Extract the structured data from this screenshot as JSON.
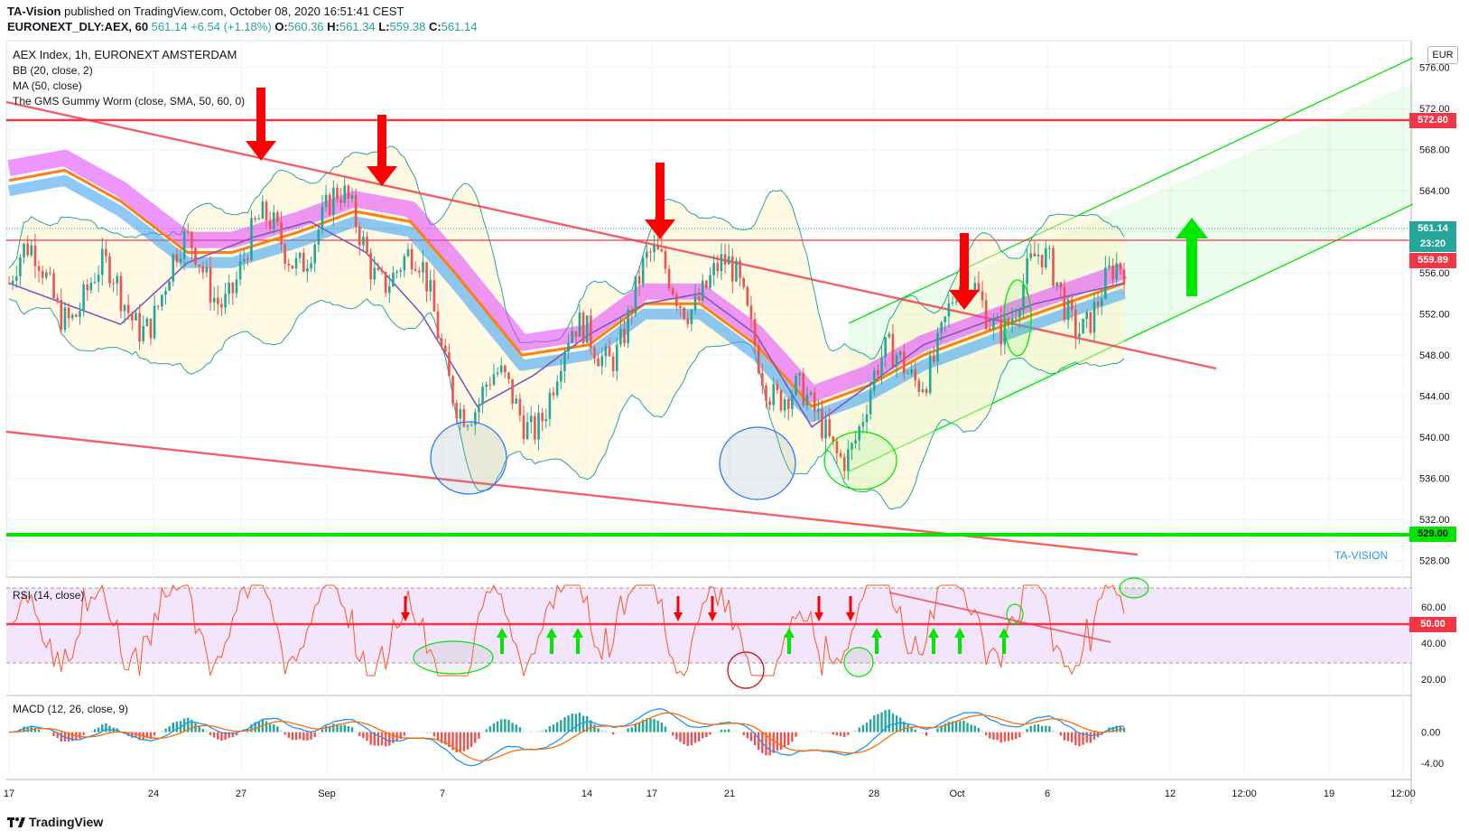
{
  "header": {
    "publisher": "TA-Vision",
    "published_text": "published on TradingView.com, October 08, 2020 16:51:41 CEST",
    "symbol": "EURONEXT_DLY:AEX, 60",
    "last": "561.14",
    "change": "+6.54 (+1.18%)",
    "o_label": "O:",
    "o": "560.36",
    "h_label": "H:",
    "h": "561.34",
    "l_label": "L:",
    "l": "559.38",
    "c_label": "C:",
    "c": "561.14"
  },
  "legend": {
    "title": "AEX Index, 1h, EURONEXT AMSTERDAM",
    "bb": "BB (20, close, 2)",
    "ma": "MA (50, close)",
    "worm": "The GMS Gummy Worm (close, SMA, 50, 60, 0)",
    "rsi": "RSI (14, close)",
    "macd": "MACD (12, 26, close, 9)"
  },
  "currency": "EUR",
  "watermark": "TA-VISION",
  "footer": "TradingView",
  "price_tags": {
    "resistance": "572.60",
    "last": "561.14",
    "countdown": "23:20",
    "level": "559.89",
    "support": "529.00",
    "rsi_mid": "50.00"
  },
  "colors": {
    "up": "#26a69a",
    "down": "#ef5350",
    "red_line": "#f23645",
    "green_line": "#00e600",
    "ma": "#7e57c2",
    "worm_line": "#ff7f0e",
    "worm_pink": "#e040fb",
    "worm_blue": "#42a5f5"
  },
  "chart_data": [
    {
      "type": "candlestick",
      "title": "AEX Index, 1h, EURONEXT AMSTERDAM",
      "y_ticks": [
        "576.00",
        "572.00",
        "568.00",
        "564.00",
        "560.00",
        "556.00",
        "552.00",
        "548.00",
        "544.00",
        "540.00",
        "536.00",
        "532.00",
        "528.00"
      ],
      "ylim": [
        527,
        578
      ],
      "x_ticks": [
        "17",
        "24",
        "27",
        "Sep",
        "7",
        "14",
        "17",
        "21",
        "28",
        "Oct",
        "6",
        "12",
        "12:00",
        "19",
        "12:00"
      ],
      "horizontal_levels": [
        572.6,
        559.89,
        529.0
      ],
      "ma_points": [
        [
          0,
          555
        ],
        [
          10,
          551
        ],
        [
          16,
          557
        ],
        [
          22,
          559.5
        ],
        [
          27,
          561
        ],
        [
          32,
          558
        ],
        [
          37,
          552
        ],
        [
          42,
          543
        ],
        [
          47,
          546
        ],
        [
          52,
          550
        ],
        [
          57,
          553
        ],
        [
          62,
          554
        ],
        [
          67,
          550
        ],
        [
          72,
          541
        ],
        [
          77,
          545
        ],
        [
          82,
          549
        ],
        [
          87,
          551
        ],
        [
          92,
          553
        ],
        [
          100,
          555
        ]
      ],
      "worm_points": [
        [
          0,
          565
        ],
        [
          5,
          566
        ],
        [
          10,
          563
        ],
        [
          16,
          558
        ],
        [
          20,
          558
        ],
        [
          26,
          560
        ],
        [
          31,
          562
        ],
        [
          36,
          561
        ],
        [
          40,
          556
        ],
        [
          46,
          548
        ],
        [
          52,
          549
        ],
        [
          57,
          553
        ],
        [
          62,
          553
        ],
        [
          67,
          549
        ],
        [
          72,
          543
        ],
        [
          77,
          545
        ],
        [
          82,
          548
        ],
        [
          87,
          550
        ],
        [
          92,
          552
        ],
        [
          100,
          555
        ]
      ]
    },
    {
      "type": "line",
      "title": "RSI (14, close)",
      "y_ticks": [
        "60.00",
        "40.00",
        "20.00"
      ],
      "ylim": [
        12,
        75
      ],
      "levels": [
        70,
        50,
        30
      ]
    },
    {
      "type": "bar",
      "title": "MACD (12, 26, close, 9)",
      "y_ticks": [
        "0.00",
        "-4.00"
      ],
      "ylim": [
        -6,
        4.5
      ]
    }
  ]
}
